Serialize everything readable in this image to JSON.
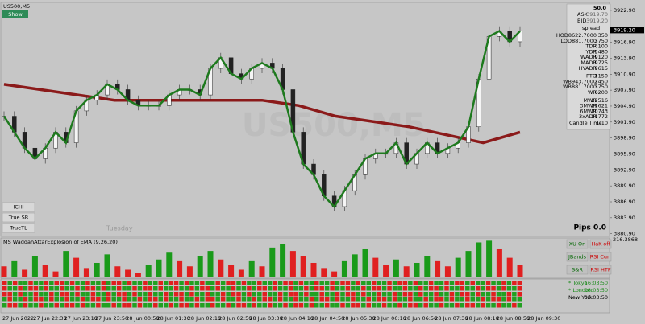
{
  "header": {
    "symbol": "US500,M5",
    "show_button": "Show",
    "pips": "Pips 0.0",
    "day_watermark": "Tuesday"
  },
  "buttons": {
    "left": [
      "ICHI",
      "True SR",
      "TrueTL"
    ],
    "right": [
      "XU On",
      "HaK-off",
      "JBands",
      "RSI Curr",
      "S&R",
      "RSI HTF"
    ]
  },
  "info_panel": {
    "top": "50.0",
    "ask": [
      "ASK",
      "3919.70"
    ],
    "bid": [
      "BID",
      "3919.20"
    ],
    "spread": "spread",
    "groups": [
      [
        [
          "HOD8622.7000",
          "350"
        ],
        [
          "LOD881.7000",
          "3750"
        ],
        [
          "TDR",
          "4100"
        ],
        [
          "YDR",
          "5480"
        ],
        [
          "WADR",
          "9120"
        ],
        [
          "MADR",
          "9725"
        ],
        [
          "HYADR",
          "9615"
        ]
      ],
      [
        [
          "PTO",
          "1150"
        ],
        [
          "WB943.7000",
          "2450"
        ],
        [
          "WB881.7000",
          "3750"
        ],
        [
          "WR",
          "6200"
        ]
      ],
      [
        [
          "MWR",
          "22516"
        ],
        [
          "3MWR",
          "21621"
        ],
        [
          "6MWR",
          "20743"
        ],
        [
          "3xADR",
          "31772"
        ]
      ]
    ],
    "candle_time": [
      "Candle Time",
      "1:10"
    ]
  },
  "price_axis": {
    "ylim": [
      3880.4,
      3924.4
    ],
    "ticks": [
      {
        "value": 3922.9,
        "label": "3922.90"
      },
      {
        "value": 3916.9,
        "label": "3916.90"
      },
      {
        "value": 3913.9,
        "label": "3913.90"
      },
      {
        "value": 3910.9,
        "label": "3910.90"
      },
      {
        "value": 3907.9,
        "label": "3907.90"
      },
      {
        "value": 3904.9,
        "label": "3904.90"
      },
      {
        "value": 3901.9,
        "label": "3901.90"
      },
      {
        "value": 3898.9,
        "label": "3898.90"
      },
      {
        "value": 3895.9,
        "label": "3895.90"
      },
      {
        "value": 3892.9,
        "label": "3892.90"
      },
      {
        "value": 3889.9,
        "label": "3889.90"
      },
      {
        "value": 3886.9,
        "label": "3886.90"
      },
      {
        "value": 3883.9,
        "label": "3883.90"
      },
      {
        "value": 3880.9,
        "label": "3880.90"
      }
    ],
    "current": {
      "value": 3919.2,
      "label": "3919.20"
    }
  },
  "price_series": {
    "close": [
      3903,
      3900,
      3897,
      3895,
      3897,
      3900,
      3898,
      3904,
      3906,
      3907,
      3909,
      3908,
      3906,
      3905,
      3905,
      3905,
      3907,
      3908,
      3908,
      3907,
      3912,
      3914,
      3911,
      3910,
      3912,
      3913,
      3912,
      3908,
      3900,
      3894,
      3892,
      3888,
      3886,
      3889,
      3892,
      3895,
      3896,
      3896,
      3898,
      3894,
      3896,
      3898,
      3896,
      3897,
      3898,
      3901,
      3910,
      3918,
      3919,
      3917,
      3919
    ],
    "slow_ma": [
      3909,
      3908,
      3907,
      3906,
      3906,
      3906,
      3906,
      3906,
      3905,
      3903,
      3902,
      3901,
      3899.5,
      3898,
      3900
    ]
  },
  "indicator": {
    "title": "MS WaddahAttarExplosion of EMA (9,26,20)",
    "scale_label": "216.3868",
    "ymax": 216.3868,
    "values": [
      60,
      90,
      40,
      120,
      70,
      30,
      150,
      110,
      50,
      80,
      130,
      60,
      40,
      20,
      70,
      100,
      140,
      90,
      60,
      120,
      150,
      100,
      70,
      40,
      90,
      60,
      170,
      190,
      150,
      120,
      80,
      50,
      30,
      90,
      130,
      160,
      110,
      70,
      100,
      60,
      80,
      120,
      90,
      60,
      110,
      150,
      200,
      210,
      160,
      110,
      70
    ]
  },
  "sessions": [
    [
      "* Tokyo",
      "16:03:50"
    ],
    [
      "* London",
      "08:03:50"
    ],
    [
      "New York",
      "03:03:50"
    ]
  ],
  "time_axis": [
    "27 Jun 2022",
    "27 Jun 22:30",
    "27 Jun 23:10",
    "27 Jun 23:50",
    "28 Jun 00:50",
    "28 Jun 01:30",
    "28 Jun 02:10",
    "28 Jun 02:50",
    "28 Jun 03:30",
    "28 Jun 04:10",
    "28 Jun 04:50",
    "28 Jun 05:30",
    "28 Jun 06:10",
    "28 Jun 06:50",
    "28 Jun 07:30",
    "28 Jun 08:10",
    "28 Jun 08:50",
    "28 Jun 09:30"
  ]
}
